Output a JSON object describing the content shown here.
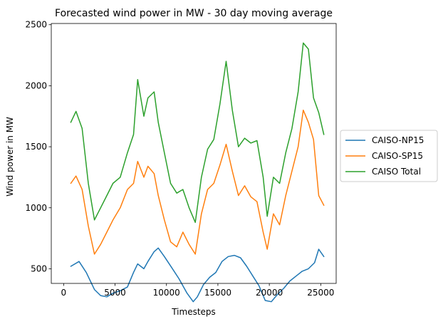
{
  "chart_data": {
    "type": "line",
    "title": "Forecasted wind power in MW - 30 day moving average",
    "xlabel": "Timesteps",
    "ylabel": "Wind power in MW",
    "xlim": [
      -1200,
      26500
    ],
    "ylim": [
      380,
      2510
    ],
    "xticks": [
      0,
      5000,
      10000,
      15000,
      20000,
      25000
    ],
    "yticks": [
      500,
      1000,
      1500,
      2000,
      2500
    ],
    "grid": false,
    "legend_position": "center-right outside",
    "series": [
      {
        "name": "CAISO-NP15",
        "color": "#1f77b4",
        "x": [
          700,
          1500,
          2200,
          3000,
          3600,
          4200,
          4800,
          5500,
          6200,
          6800,
          7200,
          7800,
          8200,
          8800,
          9200,
          9800,
          10500,
          11200,
          12000,
          12600,
          13000,
          13600,
          14200,
          14800,
          15400,
          16000,
          16600,
          17200,
          17800,
          18400,
          19000,
          19600,
          20200,
          20800,
          21400,
          22000,
          22600,
          23200,
          23800,
          24400,
          24800,
          25300
        ],
        "y": [
          520,
          560,
          470,
          330,
          280,
          270,
          300,
          320,
          350,
          470,
          540,
          500,
          560,
          640,
          670,
          600,
          510,
          420,
          300,
          230,
          270,
          370,
          430,
          470,
          560,
          600,
          610,
          590,
          520,
          440,
          360,
          240,
          230,
          290,
          340,
          400,
          440,
          480,
          500,
          550,
          660,
          600
        ]
      },
      {
        "name": "CAISO-SP15",
        "color": "#ff7f0e",
        "x": [
          700,
          1200,
          1800,
          2400,
          3000,
          3600,
          4200,
          4800,
          5500,
          6200,
          6800,
          7200,
          7800,
          8200,
          8800,
          9200,
          9800,
          10400,
          11000,
          11600,
          12200,
          12800,
          13400,
          14000,
          14600,
          15200,
          15800,
          16400,
          17000,
          17600,
          18200,
          18800,
          19400,
          19800,
          20400,
          21000,
          21600,
          22200,
          22800,
          23300,
          23800,
          24300,
          24800,
          25300
        ],
        "y": [
          1200,
          1260,
          1150,
          850,
          620,
          700,
          800,
          900,
          1000,
          1150,
          1200,
          1380,
          1250,
          1340,
          1280,
          1100,
          900,
          720,
          680,
          800,
          700,
          620,
          950,
          1150,
          1200,
          1350,
          1520,
          1300,
          1100,
          1180,
          1090,
          1050,
          800,
          660,
          950,
          860,
          1100,
          1300,
          1500,
          1800,
          1700,
          1560,
          1100,
          1020
        ]
      },
      {
        "name": "CAISO Total",
        "color": "#2ca02c",
        "x": [
          700,
          1200,
          1800,
          2400,
          3000,
          3600,
          4200,
          4800,
          5500,
          6200,
          6800,
          7200,
          7800,
          8200,
          8800,
          9200,
          9800,
          10400,
          11000,
          11600,
          12200,
          12800,
          13400,
          14000,
          14600,
          15200,
          15800,
          16400,
          17000,
          17600,
          18200,
          18800,
          19400,
          19800,
          20400,
          21000,
          21600,
          22200,
          22800,
          23300,
          23800,
          24300,
          24800,
          25300
        ],
        "y": [
          1700,
          1790,
          1650,
          1200,
          900,
          1000,
          1100,
          1200,
          1250,
          1450,
          1600,
          2050,
          1750,
          1900,
          1950,
          1700,
          1450,
          1200,
          1120,
          1150,
          1000,
          880,
          1250,
          1480,
          1560,
          1850,
          2200,
          1800,
          1500,
          1570,
          1530,
          1550,
          1250,
          930,
          1250,
          1200,
          1450,
          1650,
          1950,
          2350,
          2300,
          1900,
          1780,
          1600
        ]
      }
    ]
  }
}
